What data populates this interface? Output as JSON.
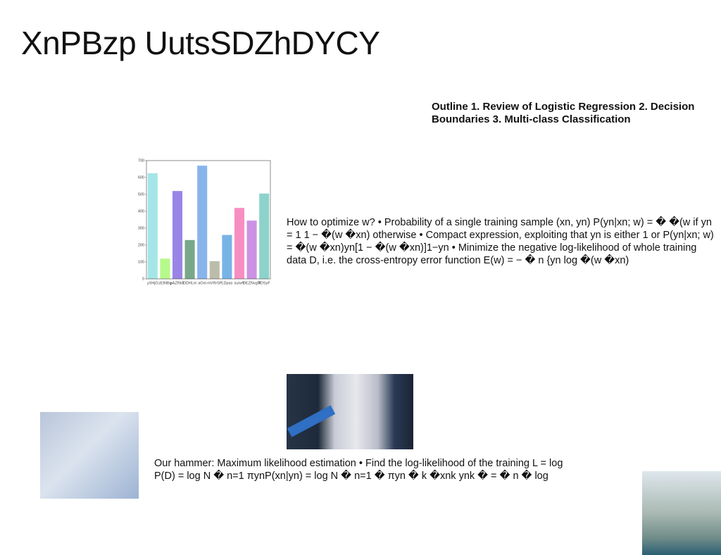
{
  "title": "XnPBzp UutsSDZhDYCY",
  "outline": "Outline 1. Review of Logistic Regression 2. Decision Boundaries 3. Multi-class Classification",
  "paragraph_1": "How to optimize w? • Probability of a single training sample (xn, yn) P(yn|xn; w) = � �(w if yn = 1 1 − �(w �xn) otherwise • Compact expression, exploiting that yn is either 1 or P(yn|xn; w) = �(w �xn)yn[1 − �(w �xn)]1−yn • Minimize the negative log-likelihood of whole training data D, i.e. the cross-entropy error function E(w) = − � n {yn log �(w �xn)",
  "paragraph_2": "Our hammer: Maximum likelihood estimation • Find the log-likelihood of the training L = log P(D) = log N � n=1 πynP(xn|yn) = log N � n=1 � πyn � k �xnk ynk � = � n � log",
  "chart_data": {
    "type": "bar",
    "categories": [
      "yXHjG",
      "zEtNBg",
      "pAZRkE",
      "DDHLm",
      "aOm",
      "mVRrSP",
      "LDpas",
      "suIwV",
      "DEZNvgM",
      "TDSyF"
    ],
    "values": [
      625,
      120,
      520,
      230,
      670,
      105,
      260,
      420,
      345,
      505
    ],
    "colors": [
      "#a4e6e8",
      "#b6f98b",
      "#9985e6",
      "#78a88a",
      "#88b4ec",
      "#bcbcab",
      "#78b3e6",
      "#f78ec2",
      "#cc92e4",
      "#8dd3cb"
    ],
    "ylim": [
      0,
      700
    ],
    "yticks": [
      0,
      100,
      200,
      300,
      400,
      500,
      600,
      700
    ]
  }
}
